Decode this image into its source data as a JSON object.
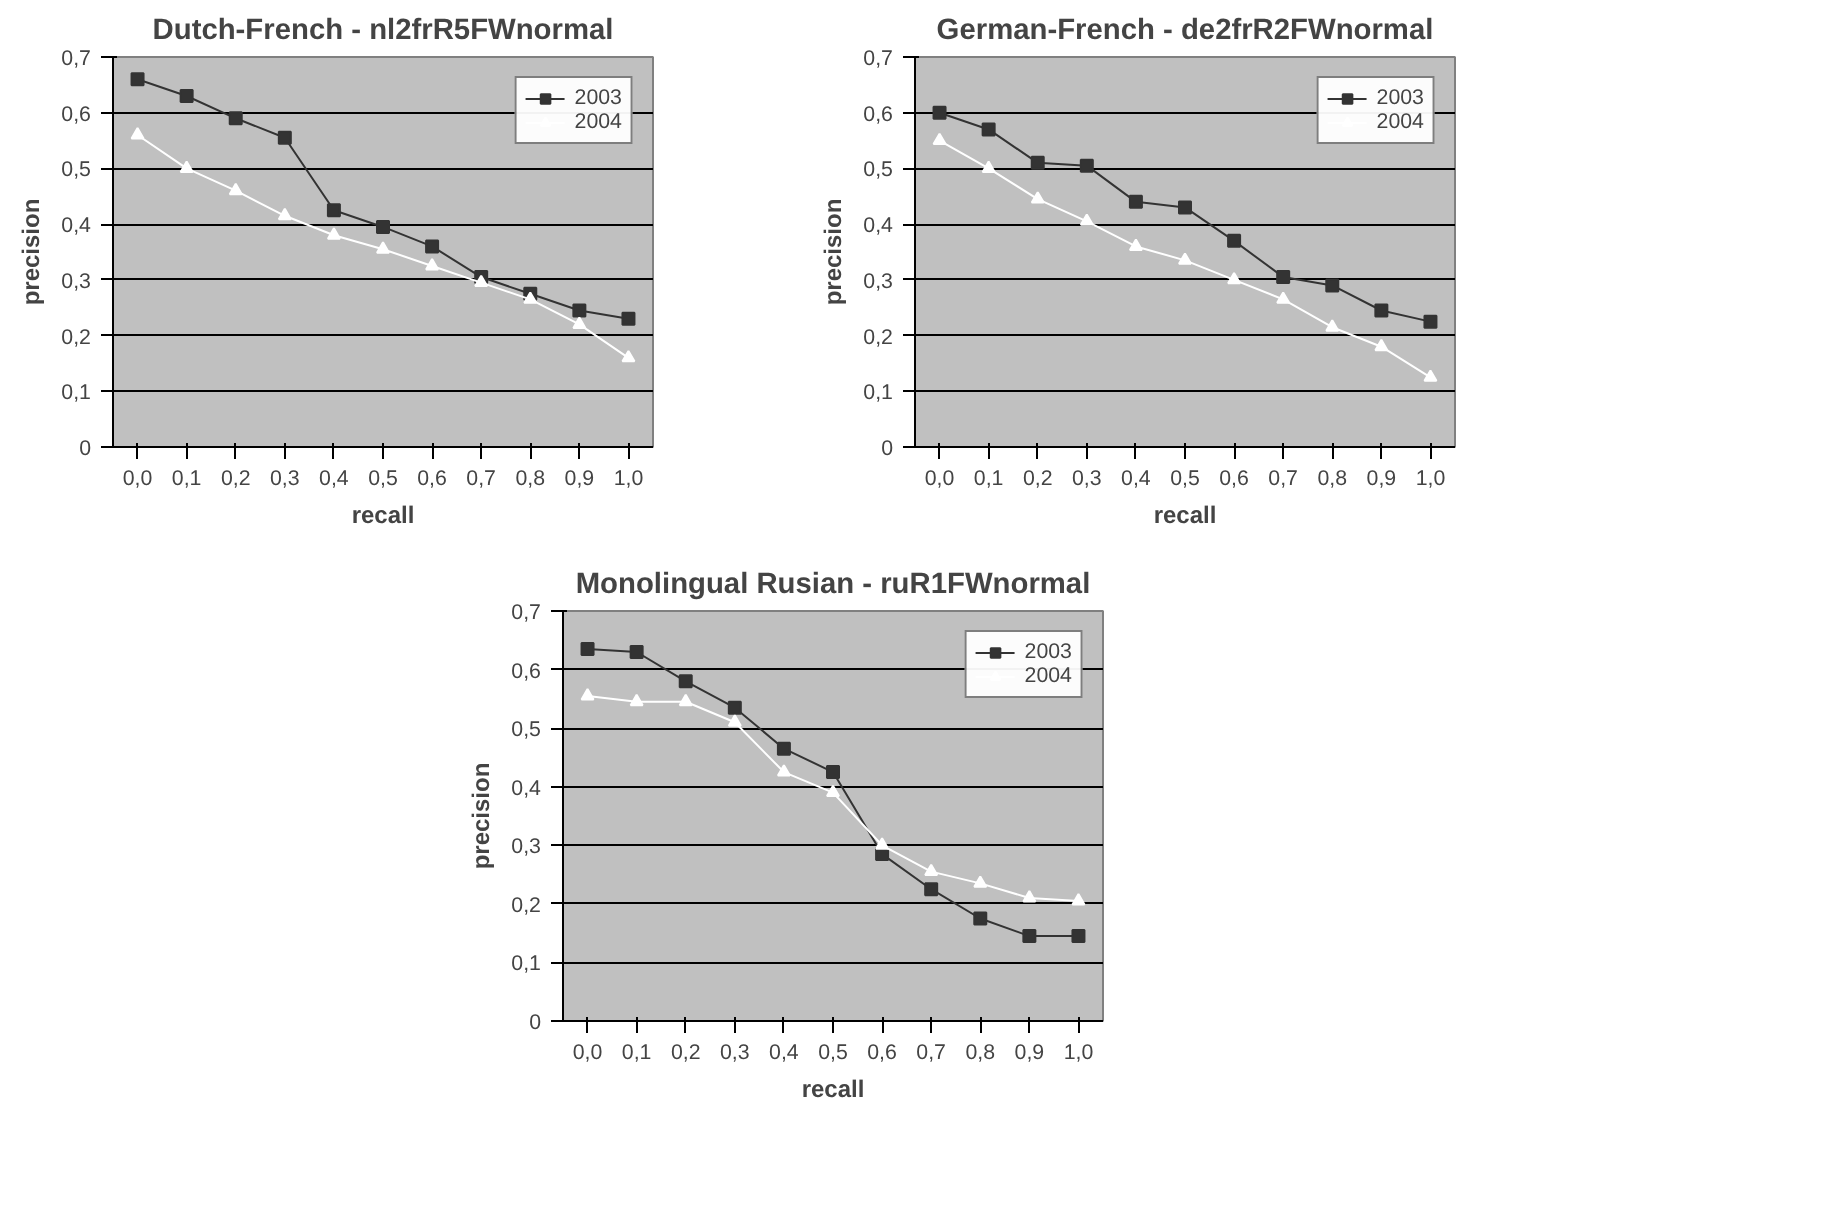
{
  "chart_data": [
    {
      "type": "line",
      "title": "Dutch-French - nl2frR5FWnormal",
      "xlabel": "recall",
      "ylabel": "precision",
      "categories": [
        "0,0",
        "0,1",
        "0,2",
        "0,3",
        "0,4",
        "0,5",
        "0,6",
        "0,7",
        "0,8",
        "0,9",
        "1,0"
      ],
      "ylim": [
        0,
        0.7
      ],
      "yticks": [
        0,
        {
          "value": 0.1,
          "label": "0,1"
        },
        {
          "value": 0.2,
          "label": "0,2"
        },
        {
          "value": 0.3,
          "label": "0,3"
        },
        {
          "value": 0.4,
          "label": "0,4"
        },
        {
          "value": 0.5,
          "label": "0,5"
        },
        {
          "value": 0.6,
          "label": "0,6"
        },
        {
          "value": 0.7,
          "label": "0,7"
        }
      ],
      "grid": "y",
      "legend": "right",
      "series": [
        {
          "name": "2003",
          "color": "#333333",
          "marker": "square",
          "values": [
            0.66,
            0.63,
            0.59,
            0.555,
            0.425,
            0.395,
            0.36,
            0.305,
            0.275,
            0.245,
            0.23
          ]
        },
        {
          "name": "2004",
          "color": "#ffffff",
          "marker": "triangle",
          "values": [
            0.56,
            0.5,
            0.46,
            0.415,
            0.38,
            0.355,
            0.325,
            0.295,
            0.265,
            0.22,
            0.16
          ]
        }
      ]
    },
    {
      "type": "line",
      "title": "German-French - de2frR2FWnormal",
      "xlabel": "recall",
      "ylabel": "precision",
      "categories": [
        "0,0",
        "0,1",
        "0,2",
        "0,3",
        "0,4",
        "0,5",
        "0,6",
        "0,7",
        "0,8",
        "0,9",
        "1,0"
      ],
      "ylim": [
        0,
        0.7
      ],
      "yticks": [
        0,
        {
          "value": 0.1,
          "label": "0,1"
        },
        {
          "value": 0.2,
          "label": "0,2"
        },
        {
          "value": 0.3,
          "label": "0,3"
        },
        {
          "value": 0.4,
          "label": "0,4"
        },
        {
          "value": 0.5,
          "label": "0,5"
        },
        {
          "value": 0.6,
          "label": "0,6"
        },
        {
          "value": 0.7,
          "label": "0,7"
        }
      ],
      "grid": "y",
      "legend": "right",
      "series": [
        {
          "name": "2003",
          "color": "#333333",
          "marker": "square",
          "values": [
            0.6,
            0.57,
            0.51,
            0.505,
            0.44,
            0.43,
            0.37,
            0.305,
            0.29,
            0.245,
            0.225
          ]
        },
        {
          "name": "2004",
          "color": "#ffffff",
          "marker": "triangle",
          "values": [
            0.55,
            0.5,
            0.445,
            0.405,
            0.36,
            0.335,
            0.3,
            0.265,
            0.215,
            0.18,
            0.125
          ]
        }
      ]
    },
    {
      "type": "line",
      "title": "Monolingual Rusian - ruR1FWnormal",
      "xlabel": "recall",
      "ylabel": "precision",
      "categories": [
        "0,0",
        "0,1",
        "0,2",
        "0,3",
        "0,4",
        "0,5",
        "0,6",
        "0,7",
        "0,8",
        "0,9",
        "1,0"
      ],
      "ylim": [
        0,
        0.7
      ],
      "yticks": [
        0,
        {
          "value": 0.1,
          "label": "0,1"
        },
        {
          "value": 0.2,
          "label": "0,2"
        },
        {
          "value": 0.3,
          "label": "0,3"
        },
        {
          "value": 0.4,
          "label": "0,4"
        },
        {
          "value": 0.5,
          "label": "0,5"
        },
        {
          "value": 0.6,
          "label": "0,6"
        },
        {
          "value": 0.7,
          "label": "0,7"
        }
      ],
      "grid": "y",
      "legend": "right",
      "series": [
        {
          "name": "2003",
          "color": "#333333",
          "marker": "square",
          "values": [
            0.635,
            0.63,
            0.58,
            0.535,
            0.465,
            0.425,
            0.285,
            0.225,
            0.175,
            0.145,
            0.145
          ]
        },
        {
          "name": "2004",
          "color": "#ffffff",
          "marker": "triangle",
          "values": [
            0.555,
            0.545,
            0.545,
            0.51,
            0.425,
            0.39,
            0.3,
            0.255,
            0.235,
            0.21,
            0.205
          ]
        }
      ]
    }
  ]
}
